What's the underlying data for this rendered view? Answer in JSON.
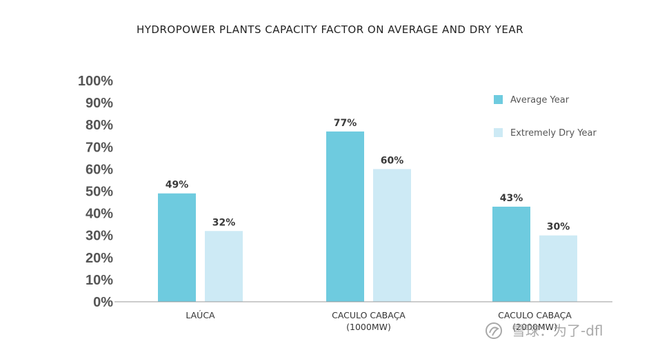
{
  "chart_data": {
    "type": "bar",
    "title": "HYDROPOWER PLANTS CAPACITY FACTOR ON AVERAGE AND DRY YEAR",
    "categories": [
      [
        "LAÚCA"
      ],
      [
        "CACULO CABAÇA",
        "(1000MW)"
      ],
      [
        "CACULO CABAÇA",
        "(2000MW)"
      ]
    ],
    "series": [
      {
        "name": "Average Year",
        "values": [
          49,
          77,
          43
        ],
        "labels": [
          "49%",
          "77%",
          "43%"
        ],
        "color": "#6ecbdf"
      },
      {
        "name": "Extremely Dry Year",
        "values": [
          32,
          60,
          30
        ],
        "labels": [
          "32%",
          "60%",
          "30%"
        ],
        "color": "#cdeaf5"
      }
    ],
    "yticks": [
      "0%",
      "10%",
      "20%",
      "30%",
      "40%",
      "50%",
      "60%",
      "70%",
      "80%",
      "90%",
      "100%"
    ],
    "ylim": [
      0,
      100
    ],
    "grid": false,
    "legend_position": "top-right"
  },
  "watermark": {
    "text": "雪球：为了-dfl",
    "icon": "snowball-logo-icon"
  }
}
